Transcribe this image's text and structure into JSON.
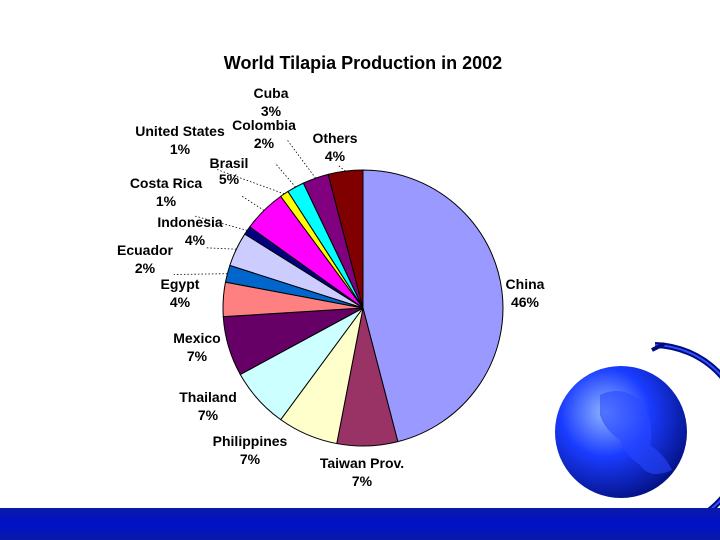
{
  "chart_data": {
    "type": "pie",
    "title": "World Tilapia Production in 2002",
    "slices": [
      {
        "label": "China",
        "value": 46,
        "pct_label": "46%",
        "color": "#9999ff"
      },
      {
        "label": "Taiwan Prov.",
        "value": 7,
        "pct_label": "7%",
        "color": "#993366"
      },
      {
        "label": "Philippines",
        "value": 7,
        "pct_label": "7%",
        "color": "#ffffcc"
      },
      {
        "label": "Thailand",
        "value": 7,
        "pct_label": "7%",
        "color": "#ccffff"
      },
      {
        "label": "Mexico",
        "value": 7,
        "pct_label": "7%",
        "color": "#660066"
      },
      {
        "label": "Egypt",
        "value": 4,
        "pct_label": "4%",
        "color": "#ff8080"
      },
      {
        "label": "Ecuador",
        "value": 2,
        "pct_label": "2%",
        "color": "#0066cc"
      },
      {
        "label": "Indonesia",
        "value": 4,
        "pct_label": "4%",
        "color": "#ccccff"
      },
      {
        "label": "Costa Rica",
        "value": 1,
        "pct_label": "1%",
        "color": "#000080"
      },
      {
        "label": "Brasil",
        "value": 5,
        "pct_label": "5%",
        "color": "#ff00ff"
      },
      {
        "label": "United States",
        "value": 1,
        "pct_label": "1%",
        "color": "#ffff00"
      },
      {
        "label": "Colombia",
        "value": 2,
        "pct_label": "2%",
        "color": "#00ffff"
      },
      {
        "label": "Cuba",
        "value": 3,
        "pct_label": "3%",
        "color": "#800080"
      },
      {
        "label": "Others",
        "value": 4,
        "pct_label": "4%",
        "color": "#800000"
      }
    ]
  },
  "decor": {
    "globe_icon": "globe-icon",
    "bar_color": "#0010c8"
  }
}
